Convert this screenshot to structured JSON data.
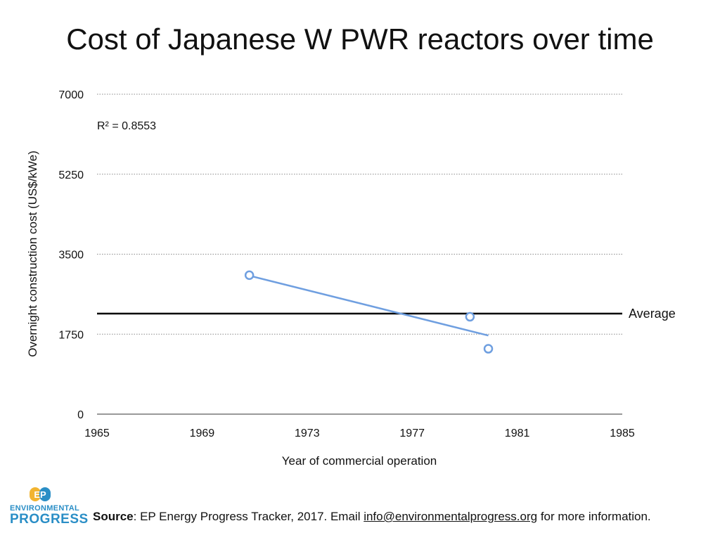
{
  "chart_data": {
    "type": "scatter",
    "title": "Cost of Japanese W PWR reactors over time",
    "xlabel": "Year of commercial operation",
    "ylabel": "Overnight construction cost (US$/kWe)",
    "xlim": [
      1965,
      1985
    ],
    "ylim": [
      0,
      7000
    ],
    "xticks": [
      1965,
      1969,
      1973,
      1977,
      1981,
      1985
    ],
    "yticks": [
      0,
      1750,
      3500,
      5250,
      7000
    ],
    "grid": true,
    "points": [
      {
        "x": 1970.8,
        "y": 3040
      },
      {
        "x": 1979.2,
        "y": 2130
      },
      {
        "x": 1979.9,
        "y": 1430
      }
    ],
    "trendline": {
      "x": [
        1970.8,
        1979.9
      ],
      "y": [
        3030,
        1720
      ]
    },
    "r_squared_label": "R² = 0.8553",
    "average": {
      "value": 2200,
      "label": "Average"
    },
    "colors": {
      "points": "#6f9fe0",
      "trendline": "#6f9fe0",
      "average": "#000000",
      "grid": "#888888"
    }
  },
  "footer": {
    "source_label": "Source",
    "source_text": ": EP Energy Progress Tracker, 2017. Email ",
    "email": "info@environmentalprogress.org",
    "trailing": " for more information."
  },
  "logo": {
    "mark": "EP",
    "line1": "ENVIRONMENTAL",
    "line2": "PROGRESS"
  }
}
